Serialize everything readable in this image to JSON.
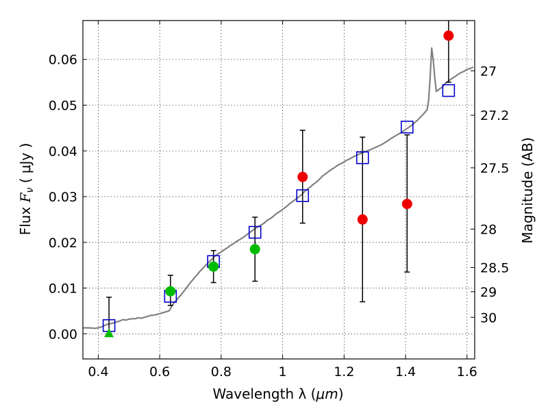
{
  "chart_data": {
    "type": "scatter",
    "xlabel_prefix": "Wavelength  λ (",
    "xlabel_unit": "μm",
    "xlabel_suffix": ")",
    "ylabel_prefix": "Flux  ",
    "ylabel_var": "F",
    "ylabel_sub": "ν",
    "ylabel_unit": "  ( μJy )",
    "y2label": "Magnitude (AB)",
    "xlim": [
      0.35,
      1.625
    ],
    "ylim": [
      -0.0055,
      0.0685
    ],
    "grid": true,
    "x_ticks": [
      {
        "v": 0.4,
        "label": "0.4"
      },
      {
        "v": 0.6,
        "label": "0.6"
      },
      {
        "v": 0.8,
        "label": "0.8"
      },
      {
        "v": 1.0,
        "label": "1"
      },
      {
        "v": 1.2,
        "label": "1.2"
      },
      {
        "v": 1.4,
        "label": "1.4"
      },
      {
        "v": 1.6,
        "label": "1.6"
      }
    ],
    "y_ticks": [
      {
        "v": 0.0,
        "label": "0.00"
      },
      {
        "v": 0.01,
        "label": "0.01"
      },
      {
        "v": 0.02,
        "label": "0.02"
      },
      {
        "v": 0.03,
        "label": "0.03"
      },
      {
        "v": 0.04,
        "label": "0.04"
      },
      {
        "v": 0.05,
        "label": "0.05"
      },
      {
        "v": 0.06,
        "label": "0.06"
      }
    ],
    "y2_ticks": [
      {
        "flux": 0.0575,
        "label": "27"
      },
      {
        "flux": 0.0478,
        "label": "27.2"
      },
      {
        "flux": 0.0363,
        "label": "27.5"
      },
      {
        "flux": 0.0229,
        "label": "28"
      },
      {
        "flux": 0.0145,
        "label": "28.5"
      },
      {
        "flux": 0.0092,
        "label": "29"
      },
      {
        "flux": 0.0036,
        "label": "30"
      }
    ],
    "model_spectrum": {
      "color": "#808080",
      "points": [
        [
          0.35,
          0.0013
        ],
        [
          0.37,
          0.0013
        ],
        [
          0.39,
          0.0012
        ],
        [
          0.4,
          0.0013
        ],
        [
          0.41,
          0.0015
        ],
        [
          0.42,
          0.0018
        ],
        [
          0.43,
          0.0021
        ],
        [
          0.44,
          0.0022
        ],
        [
          0.45,
          0.0024
        ],
        [
          0.46,
          0.0026
        ],
        [
          0.47,
          0.0028
        ],
        [
          0.48,
          0.0031
        ],
        [
          0.49,
          0.003
        ],
        [
          0.5,
          0.0032
        ],
        [
          0.51,
          0.0033
        ],
        [
          0.52,
          0.0033
        ],
        [
          0.53,
          0.0035
        ],
        [
          0.54,
          0.0034
        ],
        [
          0.55,
          0.0036
        ],
        [
          0.56,
          0.0038
        ],
        [
          0.57,
          0.004
        ],
        [
          0.58,
          0.0041
        ],
        [
          0.59,
          0.0042
        ],
        [
          0.6,
          0.0044
        ],
        [
          0.61,
          0.0046
        ],
        [
          0.62,
          0.0048
        ],
        [
          0.63,
          0.005
        ],
        [
          0.635,
          0.0055
        ],
        [
          0.64,
          0.0062
        ],
        [
          0.65,
          0.007
        ],
        [
          0.66,
          0.0078
        ],
        [
          0.67,
          0.0086
        ],
        [
          0.68,
          0.0094
        ],
        [
          0.69,
          0.0103
        ],
        [
          0.7,
          0.0112
        ],
        [
          0.71,
          0.012
        ],
        [
          0.72,
          0.0128
        ],
        [
          0.73,
          0.0136
        ],
        [
          0.74,
          0.0143
        ],
        [
          0.75,
          0.015
        ],
        [
          0.76,
          0.0157
        ],
        [
          0.77,
          0.0163
        ],
        [
          0.78,
          0.017
        ],
        [
          0.79,
          0.0175
        ],
        [
          0.8,
          0.0179
        ],
        [
          0.81,
          0.0184
        ],
        [
          0.82,
          0.0188
        ],
        [
          0.83,
          0.0193
        ],
        [
          0.84,
          0.0197
        ],
        [
          0.85,
          0.0202
        ],
        [
          0.86,
          0.0206
        ],
        [
          0.87,
          0.021
        ],
        [
          0.88,
          0.0215
        ],
        [
          0.89,
          0.022
        ],
        [
          0.9,
          0.0225
        ],
        [
          0.91,
          0.023
        ],
        [
          0.92,
          0.0234
        ],
        [
          0.93,
          0.0238
        ],
        [
          0.94,
          0.0242
        ],
        [
          0.95,
          0.0248
        ],
        [
          0.96,
          0.0252
        ],
        [
          0.97,
          0.0257
        ],
        [
          0.98,
          0.0263
        ],
        [
          0.99,
          0.0267
        ],
        [
          1.0,
          0.0272
        ],
        [
          1.01,
          0.0277
        ],
        [
          1.02,
          0.0283
        ],
        [
          1.03,
          0.0288
        ],
        [
          1.04,
          0.0293
        ],
        [
          1.05,
          0.0298
        ],
        [
          1.06,
          0.0303
        ],
        [
          1.07,
          0.031
        ],
        [
          1.08,
          0.0316
        ],
        [
          1.09,
          0.0321
        ],
        [
          1.1,
          0.0327
        ],
        [
          1.11,
          0.0332
        ],
        [
          1.12,
          0.0338
        ],
        [
          1.13,
          0.0345
        ],
        [
          1.14,
          0.035
        ],
        [
          1.15,
          0.0355
        ],
        [
          1.16,
          0.036
        ],
        [
          1.17,
          0.0364
        ],
        [
          1.18,
          0.0369
        ],
        [
          1.19,
          0.0372
        ],
        [
          1.2,
          0.0376
        ],
        [
          1.21,
          0.038
        ],
        [
          1.22,
          0.0383
        ],
        [
          1.23,
          0.0387
        ],
        [
          1.24,
          0.039
        ],
        [
          1.25,
          0.0393
        ],
        [
          1.26,
          0.0396
        ],
        [
          1.27,
          0.0399
        ],
        [
          1.28,
          0.0401
        ],
        [
          1.29,
          0.0404
        ],
        [
          1.3,
          0.0407
        ],
        [
          1.31,
          0.041
        ],
        [
          1.32,
          0.0413
        ],
        [
          1.33,
          0.0417
        ],
        [
          1.34,
          0.0421
        ],
        [
          1.35,
          0.0426
        ],
        [
          1.36,
          0.043
        ],
        [
          1.37,
          0.0434
        ],
        [
          1.38,
          0.0438
        ],
        [
          1.39,
          0.0442
        ],
        [
          1.4,
          0.0447
        ],
        [
          1.41,
          0.0451
        ],
        [
          1.42,
          0.0456
        ],
        [
          1.43,
          0.0462
        ],
        [
          1.44,
          0.0468
        ],
        [
          1.45,
          0.0475
        ],
        [
          1.46,
          0.0482
        ],
        [
          1.47,
          0.049
        ],
        [
          1.475,
          0.051
        ],
        [
          1.48,
          0.056
        ],
        [
          1.485,
          0.0625
        ],
        [
          1.49,
          0.06
        ],
        [
          1.495,
          0.056
        ],
        [
          1.5,
          0.053
        ],
        [
          1.51,
          0.0535
        ],
        [
          1.52,
          0.054
        ],
        [
          1.53,
          0.0548
        ],
        [
          1.54,
          0.0553
        ],
        [
          1.55,
          0.0558
        ],
        [
          1.56,
          0.0562
        ],
        [
          1.57,
          0.0567
        ],
        [
          1.58,
          0.0571
        ],
        [
          1.59,
          0.0574
        ],
        [
          1.6,
          0.0578
        ],
        [
          1.61,
          0.058
        ],
        [
          1.62,
          0.0583
        ]
      ]
    },
    "model_bands": [
      {
        "x": 0.435,
        "y": 0.0018
      },
      {
        "x": 0.635,
        "y": 0.0082
      },
      {
        "x": 0.775,
        "y": 0.0158
      },
      {
        "x": 0.91,
        "y": 0.0222
      },
      {
        "x": 1.065,
        "y": 0.0302
      },
      {
        "x": 1.26,
        "y": 0.0385
      },
      {
        "x": 1.405,
        "y": 0.0452
      },
      {
        "x": 1.54,
        "y": 0.0532
      }
    ],
    "model_marker_color": "#0000cc",
    "observed": [
      {
        "x": 0.435,
        "y": 0.0,
        "err_lo": 0.0,
        "err_hi": 0.008,
        "color": "#00bb00",
        "marker": "triangle"
      },
      {
        "x": 0.635,
        "y": 0.0093,
        "err_lo": 0.0062,
        "err_hi": 0.0128,
        "color": "#00bb00",
        "marker": "circle"
      },
      {
        "x": 0.775,
        "y": 0.0147,
        "err_lo": 0.0112,
        "err_hi": 0.0182,
        "color": "#00bb00",
        "marker": "circle"
      },
      {
        "x": 0.91,
        "y": 0.0185,
        "err_lo": 0.0115,
        "err_hi": 0.0255,
        "color": "#00bb00",
        "marker": "circle"
      },
      {
        "x": 1.065,
        "y": 0.0343,
        "err_lo": 0.0242,
        "err_hi": 0.0445,
        "color": "#ee0000",
        "marker": "circle"
      },
      {
        "x": 1.26,
        "y": 0.025,
        "err_lo": 0.007,
        "err_hi": 0.043,
        "color": "#ee0000",
        "marker": "circle"
      },
      {
        "x": 1.405,
        "y": 0.0284,
        "err_lo": 0.0135,
        "err_hi": 0.0435,
        "color": "#ee0000",
        "marker": "circle"
      },
      {
        "x": 1.54,
        "y": 0.0652,
        "err_lo": 0.055,
        "err_hi": 0.0685,
        "color": "#ee0000",
        "marker": "circle"
      }
    ]
  }
}
